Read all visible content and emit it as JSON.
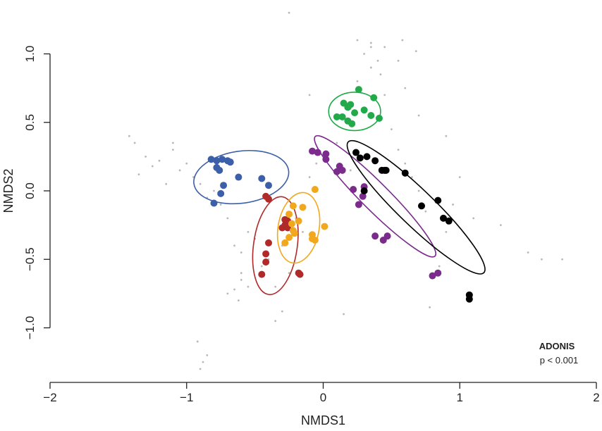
{
  "chart_data": {
    "type": "scatter",
    "xlabel": "NMDS1",
    "ylabel": "NMDS2",
    "xlim": [
      -2,
      2
    ],
    "ylim": [
      -1.35,
      1.35
    ],
    "x_ticks": [
      -2,
      -1,
      0,
      1,
      2
    ],
    "y_ticks": [
      -1.0,
      -0.5,
      0.0,
      0.5,
      1.0
    ],
    "x_tick_labels": [
      "−2",
      "−1",
      "0",
      "1",
      "2"
    ],
    "y_tick_labels": [
      "−1.0",
      "−0.5",
      "0.0",
      "0.5",
      "1.0"
    ],
    "grid": false,
    "annotation": {
      "title": "ADONIS",
      "text": "p < 0.001"
    },
    "background_points": {
      "color": "#b8b8b8",
      "x": [
        -1.42,
        -1.38,
        -1.35,
        -1.3,
        -1.25,
        -1.2,
        -1.15,
        -1.1,
        -1.05,
        -1.0,
        -0.95,
        -0.9,
        -0.85,
        -0.8,
        -0.75,
        -0.7,
        -0.65,
        -0.6,
        -0.55,
        -0.5,
        -0.45,
        -0.4,
        -0.35,
        -0.3,
        -0.25,
        -0.2,
        -0.15,
        -0.1,
        -0.05,
        0.1,
        0.2,
        0.25,
        0.3,
        0.35,
        0.4,
        0.45,
        0.5,
        0.55,
        0.6,
        0.65,
        0.7,
        0.75,
        0.8,
        0.85,
        0.9,
        0.95,
        1.0,
        1.1,
        1.3,
        1.5,
        1.75,
        0.25,
        0.35,
        0.45,
        0.58,
        0.68,
        -0.6,
        -0.65,
        -0.62,
        -0.85,
        -0.88,
        -0.9,
        -0.92,
        0.35,
        0.42,
        0.6,
        0.7,
        0.15,
        -0.35,
        -0.3,
        -0.1,
        0.2,
        0.78,
        1.6,
        0.9,
        -1.1,
        -0.7,
        -0.6,
        -0.55,
        0.55,
        -0.25
      ],
      "y": [
        0.4,
        0.35,
        0.12,
        0.25,
        0.18,
        0.22,
        0.05,
        0.3,
        0.15,
        0.2,
        0.1,
        0.05,
        -0.05,
        0.0,
        -0.1,
        -0.2,
        -0.4,
        -0.45,
        -0.3,
        -0.35,
        -0.55,
        -0.5,
        -0.7,
        -0.4,
        -0.6,
        -0.2,
        -0.3,
        0.1,
        0.2,
        0.35,
        0.6,
        0.8,
        1.0,
        1.05,
        0.95,
        0.7,
        0.45,
        0.3,
        0.2,
        0.1,
        0.0,
        -0.15,
        -0.4,
        -0.55,
        -0.3,
        -0.1,
        0.1,
        -0.2,
        -0.25,
        -0.45,
        -0.5,
        1.1,
        1.08,
        1.05,
        1.1,
        1.02,
        -0.65,
        -0.72,
        -0.8,
        -1.2,
        -1.25,
        -1.3,
        -1.1,
        0.9,
        0.85,
        0.75,
        0.55,
        -0.9,
        -0.95,
        -0.88,
        0.7,
        0.15,
        -0.85,
        -0.5,
        0.4,
        0.35,
        -0.75,
        -0.6,
        -0.7,
        0.95,
        1.3
      ]
    },
    "series": [
      {
        "color": "#3b5fa8",
        "ellipse": {
          "cx": -0.6,
          "cy": 0.1,
          "rx": 0.35,
          "ry": 0.19,
          "angle": -8
        },
        "x": [
          -0.82,
          -0.78,
          -0.74,
          -0.7,
          -0.68,
          -0.78,
          -0.76,
          -0.62,
          -0.45,
          -0.4,
          -0.73,
          -0.75,
          -0.8
        ],
        "y": [
          0.23,
          0.22,
          0.23,
          0.22,
          0.21,
          0.17,
          0.15,
          0.1,
          0.09,
          0.04,
          0.04,
          -0.02,
          -0.09
        ]
      },
      {
        "color": "#b02a2a",
        "ellipse": {
          "cx": -0.35,
          "cy": -0.4,
          "rx": 0.16,
          "ry": 0.36,
          "angle": 8
        },
        "x": [
          -0.42,
          -0.4,
          -0.28,
          -0.26,
          -0.25,
          -0.28,
          -0.3,
          -0.26,
          -0.4,
          -0.42,
          -0.42,
          -0.45,
          -0.18,
          -0.17
        ],
        "y": [
          -0.04,
          -0.06,
          -0.21,
          -0.22,
          -0.24,
          -0.25,
          -0.27,
          -0.27,
          -0.38,
          -0.46,
          -0.52,
          -0.61,
          -0.6,
          -0.61
        ]
      },
      {
        "color": "#f2a81d",
        "ellipse": {
          "cx": -0.18,
          "cy": -0.27,
          "rx": 0.15,
          "ry": 0.26,
          "angle": 10
        },
        "x": [
          -0.06,
          -0.22,
          -0.25,
          -0.15,
          -0.18,
          -0.23,
          0.01,
          -0.22,
          -0.21,
          -0.25,
          -0.28,
          -0.08,
          -0.08,
          -0.06
        ],
        "y": [
          0.01,
          -0.11,
          -0.17,
          -0.12,
          -0.22,
          -0.24,
          -0.26,
          -0.29,
          -0.31,
          -0.34,
          -0.38,
          -0.32,
          -0.35,
          -0.36
        ]
      },
      {
        "color": "#22a94a",
        "ellipse": {
          "cx": 0.23,
          "cy": 0.58,
          "rx": 0.19,
          "ry": 0.14,
          "angle": 0
        },
        "x": [
          0.26,
          0.37,
          0.15,
          0.18,
          0.2,
          0.23,
          0.3,
          0.35,
          0.41,
          0.1,
          0.14,
          0.18,
          0.21
        ],
        "y": [
          0.74,
          0.68,
          0.64,
          0.61,
          0.63,
          0.57,
          0.59,
          0.55,
          0.53,
          0.54,
          0.54,
          0.51,
          0.49
        ]
      },
      {
        "color": "#7a2b8c",
        "ellipse": {
          "cx": 0.38,
          "cy": -0.04,
          "rx": 0.62,
          "ry": 0.1,
          "angle": 45
        },
        "x": [
          -0.08,
          -0.04,
          0.02,
          0.02,
          0.12,
          0.14,
          0.1,
          0.22,
          0.3,
          0.29,
          0.26,
          0.47,
          0.38,
          0.44,
          0.8,
          0.84
        ],
        "y": [
          0.29,
          0.28,
          0.27,
          0.23,
          0.18,
          0.15,
          0.14,
          0.01,
          0.03,
          -0.04,
          -0.1,
          -0.33,
          -0.33,
          -0.36,
          -0.62,
          -0.6
        ]
      },
      {
        "color": "#000000",
        "ellipse": {
          "cx": 0.68,
          "cy": -0.12,
          "rx": 0.69,
          "ry": 0.13,
          "angle": 44
        },
        "x": [
          0.24,
          0.27,
          0.32,
          0.38,
          0.43,
          0.45,
          0.46,
          0.6,
          0.72,
          0.84,
          0.88,
          0.92,
          1.07,
          1.07,
          0.3
        ],
        "y": [
          0.28,
          0.24,
          0.25,
          0.22,
          0.15,
          0.15,
          0.15,
          0.13,
          -0.11,
          -0.07,
          -0.2,
          -0.22,
          -0.76,
          -0.79,
          0.0
        ]
      }
    ]
  }
}
